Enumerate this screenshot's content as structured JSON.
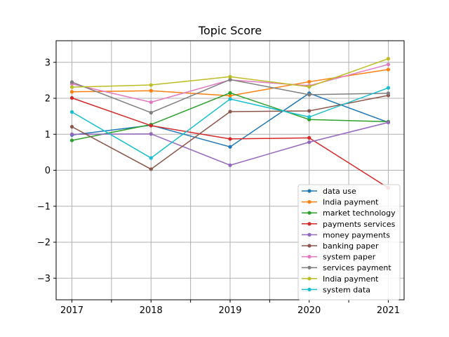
{
  "chart_data": {
    "type": "line",
    "title": "Topic Score",
    "xlabel": "",
    "ylabel": "",
    "x": [
      2017,
      2018,
      2019,
      2020,
      2021
    ],
    "xlim": [
      2016.8,
      2021.2
    ],
    "ylim": [
      -3.6,
      3.6
    ],
    "yticks": [
      -3,
      -2,
      -1,
      0,
      1,
      2,
      3
    ],
    "grid": true,
    "legend_position": "lower-right",
    "series": [
      {
        "name": "data use",
        "color": "#1f77b4",
        "values": [
          0.98,
          1.25,
          0.65,
          2.14,
          1.33
        ]
      },
      {
        "name": "India payment",
        "color": "#ff7f0e",
        "values": [
          2.18,
          2.21,
          2.07,
          2.46,
          2.8
        ]
      },
      {
        "name": "market technology",
        "color": "#2ca02c",
        "values": [
          0.83,
          1.27,
          2.15,
          1.41,
          1.35
        ]
      },
      {
        "name": "payments services",
        "color": "#d62728",
        "values": [
          2.01,
          1.24,
          0.87,
          0.9,
          -0.49
        ]
      },
      {
        "name": "money payments",
        "color": "#9467bd",
        "values": [
          1.0,
          1.01,
          0.14,
          0.78,
          1.33
        ]
      },
      {
        "name": "banking paper",
        "color": "#8c564b",
        "values": [
          1.21,
          0.03,
          1.63,
          1.65,
          2.08
        ]
      },
      {
        "name": "system paper",
        "color": "#e377c2",
        "values": [
          2.4,
          1.89,
          2.51,
          2.35,
          2.94
        ]
      },
      {
        "name": "services payment",
        "color": "#7f7f7f",
        "values": [
          2.45,
          1.6,
          2.52,
          2.1,
          2.14
        ]
      },
      {
        "name": "India payment",
        "color": "#bcbd22",
        "values": [
          2.31,
          2.37,
          2.6,
          2.32,
          3.1
        ]
      },
      {
        "name": "system data",
        "color": "#17becf",
        "values": [
          1.62,
          0.34,
          1.98,
          1.48,
          2.29
        ]
      }
    ]
  }
}
